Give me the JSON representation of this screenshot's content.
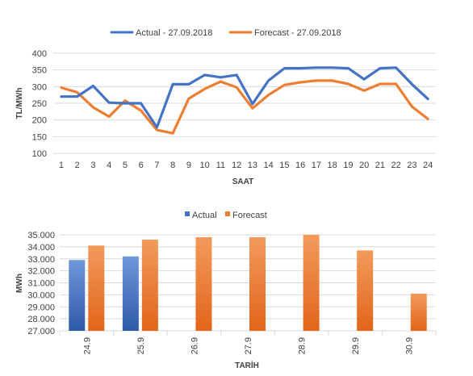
{
  "colors": {
    "actual": "#4472C4",
    "forecast": "#ED7D31",
    "grid": "#D9D9D9",
    "text": "#404040"
  },
  "chart_data": [
    {
      "type": "line",
      "title": "",
      "xlabel": "SAAT",
      "ylabel": "TL/MWh",
      "ylim": [
        100,
        400
      ],
      "yticks": [
        "100",
        "150",
        "200",
        "250",
        "300",
        "350",
        "400"
      ],
      "ytick_values": [
        100,
        150,
        200,
        250,
        300,
        350,
        400
      ],
      "x": [
        1,
        2,
        3,
        4,
        5,
        6,
        7,
        8,
        9,
        10,
        11,
        12,
        13,
        14,
        15,
        16,
        17,
        18,
        19,
        20,
        21,
        22,
        23,
        24
      ],
      "grid": true,
      "legend": "top",
      "series": [
        {
          "name": "Actual - 27.09.2018",
          "values": [
            270,
            270,
            302,
            252,
            250,
            250,
            178,
            307,
            307,
            335,
            328,
            335,
            248,
            318,
            355,
            355,
            357,
            357,
            355,
            322,
            355,
            357,
            307,
            263
          ]
        },
        {
          "name": "Forecast - 27.09.2018",
          "values": [
            297,
            283,
            238,
            210,
            258,
            228,
            170,
            160,
            264,
            293,
            315,
            298,
            235,
            275,
            305,
            313,
            318,
            318,
            308,
            288,
            308,
            308,
            240,
            203
          ]
        }
      ]
    },
    {
      "type": "bar",
      "title": "",
      "xlabel": "TARİH",
      "ylabel": "MWh",
      "ylim": [
        27000,
        35000
      ],
      "yticks": [
        "27.000",
        "28.000",
        "29.000",
        "30.000",
        "31.000",
        "32.000",
        "33.000",
        "34.000",
        "35.000"
      ],
      "ytick_values": [
        27000,
        28000,
        29000,
        30000,
        31000,
        32000,
        33000,
        34000,
        35000
      ],
      "categories": [
        "24.9",
        "25.9",
        "26.9",
        "27.9",
        "28.9",
        "29.9",
        "30.9"
      ],
      "grid": true,
      "legend": "top",
      "series": [
        {
          "name": "Actual",
          "values": [
            32900,
            33200,
            null,
            null,
            null,
            null,
            null
          ]
        },
        {
          "name": "Forecast",
          "values": [
            34100,
            34600,
            34800,
            34800,
            35000,
            33700,
            30100
          ]
        }
      ]
    }
  ]
}
